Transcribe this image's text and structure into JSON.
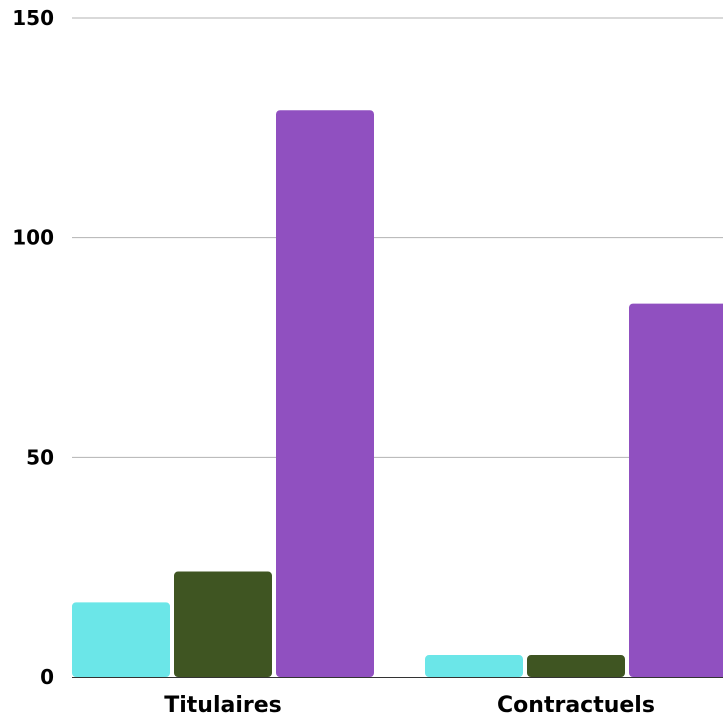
{
  "chart_data": {
    "type": "bar",
    "categories": [
      "Titulaires",
      "Contractuels"
    ],
    "series": [
      {
        "color": "#6be6e8",
        "values": [
          17,
          5
        ]
      },
      {
        "color": "#3f5522",
        "values": [
          24,
          5
        ]
      },
      {
        "color": "#9050c0",
        "values": [
          129,
          85
        ]
      }
    ],
    "ylim": [
      0,
      150
    ],
    "yticks": [
      0,
      50,
      100,
      150
    ],
    "grid": true,
    "legend": "none",
    "title": "",
    "xlabel": "",
    "ylabel": ""
  }
}
